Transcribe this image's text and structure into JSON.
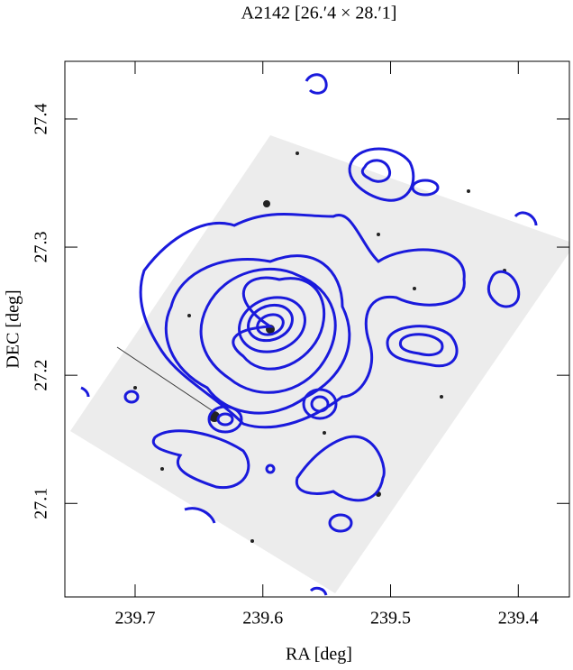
{
  "chart_data": {
    "type": "image",
    "title": "A2142  [26.′4 × 28.′1]",
    "xlabel": "RA [deg]",
    "ylabel": "DEC [deg]",
    "xlim": [
      239.755,
      239.36
    ],
    "xticks": [
      239.7,
      239.6,
      239.5,
      239.4
    ],
    "ylim": [
      27.027,
      27.445
    ],
    "yticks": [
      27.1,
      27.2,
      27.3,
      27.4
    ],
    "contour_color": "#1a1adc"
  }
}
